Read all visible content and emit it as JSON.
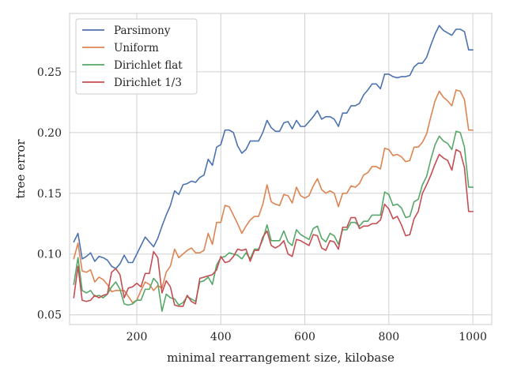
{
  "chart_data": {
    "type": "line",
    "title": "",
    "xlabel": "minimal rearrangement size, kilobase",
    "ylabel": "tree error",
    "xlim": [
      40,
      1045
    ],
    "ylim": [
      0.042,
      0.298
    ],
    "xticks": [
      200,
      400,
      600,
      800,
      1000
    ],
    "yticks": [
      0.05,
      0.1,
      0.15,
      0.2,
      0.25
    ],
    "xtick_labels": [
      "200",
      "400",
      "600",
      "800",
      "1000"
    ],
    "ytick_labels": [
      "0.05",
      "0.10",
      "0.15",
      "0.20",
      "0.25"
    ],
    "grid": true,
    "legend_position": "top-left",
    "x": [
      50,
      60,
      70,
      80,
      90,
      100,
      110,
      120,
      130,
      140,
      150,
      160,
      170,
      180,
      190,
      200,
      210,
      220,
      230,
      240,
      250,
      260,
      270,
      280,
      290,
      300,
      310,
      320,
      330,
      340,
      350,
      360,
      370,
      380,
      390,
      400,
      410,
      420,
      430,
      440,
      450,
      460,
      470,
      480,
      490,
      500,
      510,
      520,
      530,
      540,
      550,
      560,
      570,
      580,
      590,
      600,
      610,
      620,
      630,
      640,
      650,
      660,
      670,
      680,
      690,
      700,
      710,
      720,
      730,
      740,
      750,
      760,
      770,
      780,
      790,
      800,
      810,
      820,
      830,
      840,
      850,
      860,
      870,
      880,
      890,
      900,
      910,
      920,
      930,
      940,
      950,
      960,
      970,
      980,
      990,
      1000
    ],
    "series": [
      {
        "name": "Parsimony",
        "color": "#4c72b0",
        "values": [
          0.11,
          0.117,
          0.096,
          0.098,
          0.101,
          0.094,
          0.098,
          0.097,
          0.095,
          0.09,
          0.088,
          0.092,
          0.099,
          0.093,
          0.093,
          0.1,
          0.107,
          0.114,
          0.11,
          0.106,
          0.113,
          0.123,
          0.132,
          0.14,
          0.152,
          0.149,
          0.157,
          0.158,
          0.16,
          0.159,
          0.163,
          0.165,
          0.178,
          0.173,
          0.188,
          0.19,
          0.202,
          0.202,
          0.2,
          0.189,
          0.183,
          0.186,
          0.193,
          0.193,
          0.193,
          0.2,
          0.21,
          0.204,
          0.201,
          0.201,
          0.208,
          0.209,
          0.203,
          0.21,
          0.205,
          0.205,
          0.209,
          0.213,
          0.218,
          0.211,
          0.213,
          0.213,
          0.211,
          0.205,
          0.216,
          0.216,
          0.222,
          0.222,
          0.224,
          0.231,
          0.235,
          0.24,
          0.24,
          0.236,
          0.248,
          0.248,
          0.246,
          0.245,
          0.246,
          0.246,
          0.247,
          0.254,
          0.257,
          0.257,
          0.262,
          0.272,
          0.281,
          0.288,
          0.284,
          0.282,
          0.28,
          0.285,
          0.285,
          0.283,
          0.268,
          0.268
        ]
      },
      {
        "name": "Uniform",
        "color": "#dd8452",
        "values": [
          0.096,
          0.109,
          0.086,
          0.085,
          0.087,
          0.077,
          0.081,
          0.079,
          0.075,
          0.069,
          0.07,
          0.07,
          0.07,
          0.065,
          0.06,
          0.062,
          0.07,
          0.077,
          0.075,
          0.07,
          0.074,
          0.072,
          0.085,
          0.09,
          0.104,
          0.097,
          0.1,
          0.103,
          0.105,
          0.101,
          0.101,
          0.103,
          0.117,
          0.108,
          0.126,
          0.126,
          0.14,
          0.139,
          0.132,
          0.125,
          0.117,
          0.123,
          0.128,
          0.131,
          0.131,
          0.141,
          0.157,
          0.143,
          0.141,
          0.14,
          0.149,
          0.148,
          0.142,
          0.155,
          0.148,
          0.146,
          0.148,
          0.156,
          0.162,
          0.153,
          0.15,
          0.152,
          0.15,
          0.139,
          0.15,
          0.15,
          0.156,
          0.155,
          0.158,
          0.165,
          0.167,
          0.172,
          0.172,
          0.17,
          0.187,
          0.186,
          0.181,
          0.182,
          0.18,
          0.176,
          0.177,
          0.188,
          0.188,
          0.192,
          0.199,
          0.213,
          0.226,
          0.234,
          0.229,
          0.226,
          0.222,
          0.235,
          0.234,
          0.227,
          0.202,
          0.202
        ]
      },
      {
        "name": "Dirichlet flat",
        "color": "#55a868",
        "values": [
          0.075,
          0.097,
          0.07,
          0.068,
          0.07,
          0.065,
          0.066,
          0.064,
          0.067,
          0.073,
          0.077,
          0.071,
          0.059,
          0.058,
          0.059,
          0.062,
          0.062,
          0.071,
          0.071,
          0.08,
          0.076,
          0.053,
          0.067,
          0.064,
          0.063,
          0.058,
          0.06,
          0.065,
          0.063,
          0.061,
          0.077,
          0.078,
          0.081,
          0.075,
          0.091,
          0.097,
          0.098,
          0.101,
          0.1,
          0.099,
          0.096,
          0.101,
          0.096,
          0.104,
          0.104,
          0.112,
          0.124,
          0.111,
          0.111,
          0.111,
          0.119,
          0.11,
          0.107,
          0.12,
          0.116,
          0.114,
          0.112,
          0.121,
          0.123,
          0.113,
          0.11,
          0.117,
          0.115,
          0.108,
          0.12,
          0.12,
          0.126,
          0.126,
          0.123,
          0.127,
          0.127,
          0.132,
          0.132,
          0.132,
          0.151,
          0.149,
          0.14,
          0.141,
          0.138,
          0.13,
          0.131,
          0.143,
          0.145,
          0.157,
          0.164,
          0.178,
          0.19,
          0.197,
          0.193,
          0.191,
          0.186,
          0.201,
          0.2,
          0.188,
          0.155,
          0.155
        ]
      },
      {
        "name": "Dirichlet 1/3",
        "color": "#c44e52",
        "values": [
          0.064,
          0.09,
          0.062,
          0.061,
          0.062,
          0.066,
          0.064,
          0.066,
          0.067,
          0.085,
          0.088,
          0.083,
          0.064,
          0.072,
          0.073,
          0.076,
          0.073,
          0.084,
          0.084,
          0.102,
          0.097,
          0.068,
          0.078,
          0.073,
          0.058,
          0.057,
          0.057,
          0.066,
          0.061,
          0.059,
          0.08,
          0.081,
          0.082,
          0.083,
          0.087,
          0.098,
          0.093,
          0.094,
          0.098,
          0.104,
          0.103,
          0.104,
          0.094,
          0.103,
          0.103,
          0.114,
          0.119,
          0.107,
          0.105,
          0.107,
          0.111,
          0.1,
          0.098,
          0.112,
          0.111,
          0.109,
          0.107,
          0.116,
          0.115,
          0.105,
          0.103,
          0.111,
          0.11,
          0.104,
          0.122,
          0.122,
          0.13,
          0.13,
          0.121,
          0.123,
          0.123,
          0.125,
          0.125,
          0.128,
          0.141,
          0.137,
          0.129,
          0.131,
          0.124,
          0.115,
          0.116,
          0.129,
          0.135,
          0.15,
          0.157,
          0.165,
          0.174,
          0.182,
          0.179,
          0.177,
          0.169,
          0.186,
          0.184,
          0.171,
          0.135,
          0.135
        ]
      }
    ]
  }
}
